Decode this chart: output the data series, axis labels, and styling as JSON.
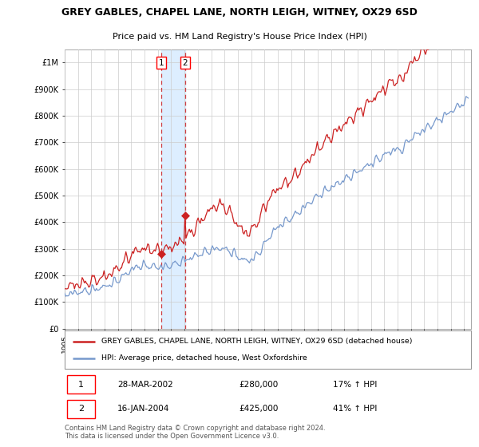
{
  "title": "GREY GABLES, CHAPEL LANE, NORTH LEIGH, WITNEY, OX29 6SD",
  "subtitle": "Price paid vs. HM Land Registry's House Price Index (HPI)",
  "legend_line1": "GREY GABLES, CHAPEL LANE, NORTH LEIGH, WITNEY, OX29 6SD (detached house)",
  "legend_line2": "HPI: Average price, detached house, West Oxfordshire",
  "transaction1_date": "28-MAR-2002",
  "transaction1_price": "£280,000",
  "transaction1_hpi": "17% ↑ HPI",
  "transaction2_date": "16-JAN-2004",
  "transaction2_price": "£425,000",
  "transaction2_hpi": "41% ↑ HPI",
  "footer": "Contains HM Land Registry data © Crown copyright and database right 2024.\nThis data is licensed under the Open Government Licence v3.0.",
  "hpi_color": "#7799cc",
  "price_color": "#cc2222",
  "marker_color": "#cc2222",
  "shade_color": "#ddeeff",
  "background_color": "#ffffff",
  "grid_color": "#cccccc",
  "ylim_min": 0,
  "ylim_max": 1050000,
  "xlim_min": 1995,
  "xlim_max": 2025.5,
  "t1_year": 2002.24,
  "t2_year": 2004.04,
  "t1_price": 280000,
  "t2_price": 425000
}
